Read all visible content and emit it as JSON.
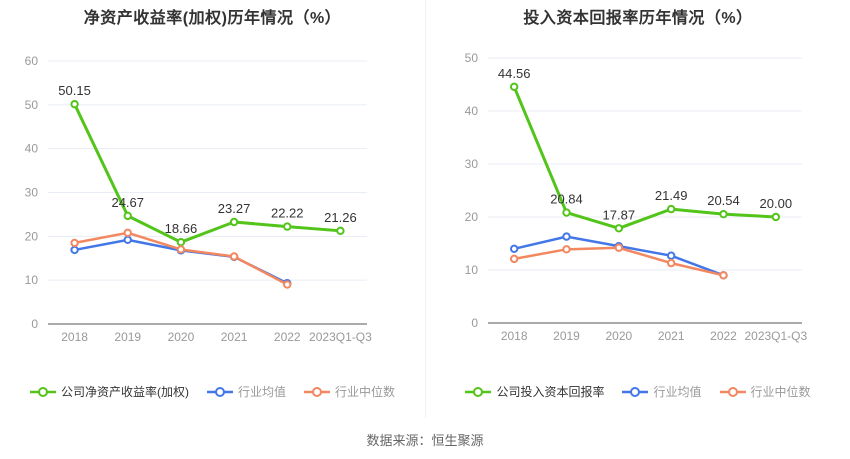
{
  "page": {
    "source_label": "数据来源：恒生聚源"
  },
  "chart_data": [
    {
      "type": "line",
      "title": "净资产收益率(加权)历年情况（%）",
      "categories": [
        "2018",
        "2019",
        "2020",
        "2021",
        "2022",
        "2023Q1-Q3"
      ],
      "ylim": [
        0,
        60
      ],
      "y_ticks": [
        0,
        10,
        20,
        30,
        40,
        50,
        60
      ],
      "grid": "horizontal",
      "legend_position": "bottom",
      "series": [
        {
          "name": "公司净资产收益率(加权)",
          "color": "#52c41a",
          "line_width": 3,
          "values": [
            50.15,
            24.67,
            18.66,
            23.27,
            22.22,
            21.26
          ],
          "point_labels": [
            "50.15",
            "24.67",
            "18.66",
            "23.27",
            "22.22",
            "21.26"
          ]
        },
        {
          "name": "行业均值",
          "color": "#4377e8",
          "line_width": 2.5,
          "values": [
            16.9,
            19.2,
            16.8,
            15.3,
            9.3
          ]
        },
        {
          "name": "行业中位数",
          "color": "#f3875f",
          "line_width": 2.5,
          "values": [
            18.5,
            20.8,
            17.0,
            15.4,
            9.0
          ]
        }
      ]
    },
    {
      "type": "line",
      "title": "投入资本回报率历年情况（%）",
      "categories": [
        "2018",
        "2019",
        "2020",
        "2021",
        "2022",
        "2023Q1-Q3"
      ],
      "ylim": [
        0,
        50
      ],
      "y_ticks": [
        0,
        10,
        20,
        30,
        40,
        50
      ],
      "grid": "horizontal",
      "legend_position": "bottom",
      "series": [
        {
          "name": "公司投入资本回报率",
          "color": "#52c41a",
          "line_width": 3,
          "values": [
            44.56,
            20.84,
            17.87,
            21.49,
            20.54,
            20.0
          ],
          "point_labels": [
            "44.56",
            "20.84",
            "17.87",
            "21.49",
            "20.54",
            "20.00"
          ]
        },
        {
          "name": "行业均值",
          "color": "#4377e8",
          "line_width": 2.5,
          "values": [
            14.0,
            16.3,
            14.5,
            12.7,
            9.0
          ]
        },
        {
          "name": "行业中位数",
          "color": "#f3875f",
          "line_width": 2.5,
          "values": [
            12.1,
            13.9,
            14.2,
            11.3,
            9.0
          ]
        }
      ]
    }
  ]
}
